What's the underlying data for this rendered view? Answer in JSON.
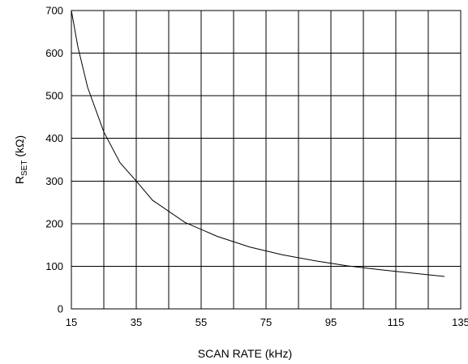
{
  "chart_data": {
    "type": "line",
    "xlabel": "SCAN RATE  (kHz)",
    "ylabel": {
      "main": "R",
      "subscript": "SET",
      "unit": " (kΩ)"
    },
    "xlim": [
      15,
      135
    ],
    "ylim": [
      0,
      700
    ],
    "x_ticks": [
      15,
      25,
      35,
      45,
      55,
      65,
      75,
      85,
      95,
      105,
      115,
      125,
      135
    ],
    "x_tick_labels": [
      "15",
      "35",
      "55",
      "75",
      "95",
      "115",
      "135"
    ],
    "y_ticks": [
      0,
      100,
      200,
      300,
      400,
      500,
      600,
      700
    ],
    "y_tick_labels": [
      "0",
      "100",
      "200",
      "300",
      "400",
      "500",
      "600",
      "700"
    ],
    "grid": true,
    "series": [
      {
        "x": [
          15,
          17,
          20,
          25,
          30,
          35,
          40,
          50,
          60,
          70,
          80,
          90,
          100,
          110,
          120,
          130
        ],
        "y": [
          700,
          615,
          520,
          415,
          343,
          300,
          255,
          203,
          170,
          145,
          127,
          113,
          101,
          92,
          84,
          76
        ]
      }
    ]
  }
}
